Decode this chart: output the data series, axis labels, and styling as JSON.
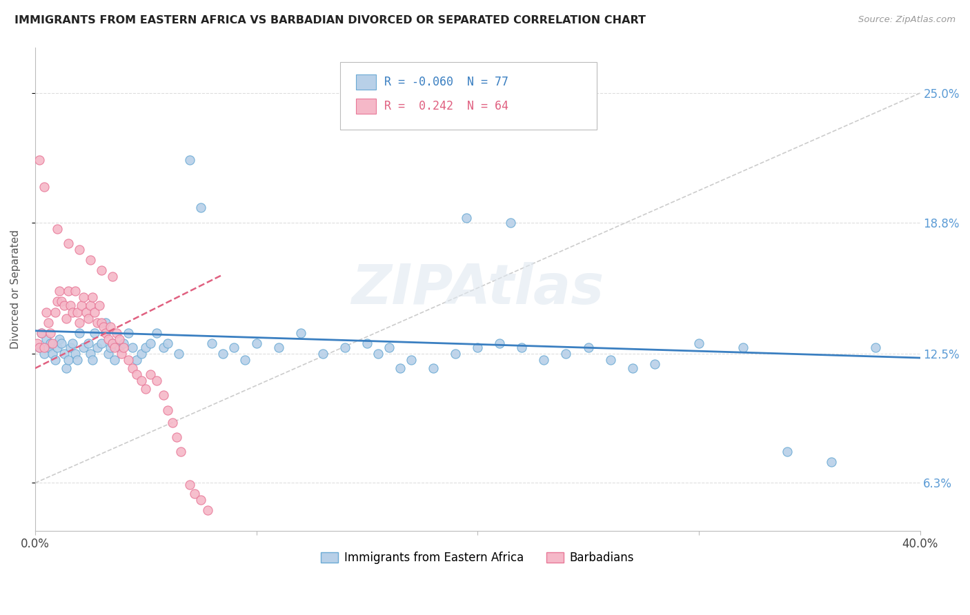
{
  "title": "IMMIGRANTS FROM EASTERN AFRICA VS BARBADIAN DIVORCED OR SEPARATED CORRELATION CHART",
  "source": "Source: ZipAtlas.com",
  "ylabel": "Divorced or Separated",
  "xlim": [
    0.0,
    0.4
  ],
  "ylim": [
    0.04,
    0.272
  ],
  "x_ticks": [
    0.0,
    0.1,
    0.2,
    0.3,
    0.4
  ],
  "x_tick_labels": [
    "0.0%",
    "",
    "",
    "",
    "40.0%"
  ],
  "y_ticks": [
    0.063,
    0.125,
    0.188,
    0.25
  ],
  "y_tick_labels": [
    "6.3%",
    "12.5%",
    "18.8%",
    "25.0%"
  ],
  "blue_R": "-0.060",
  "blue_N": "77",
  "pink_R": "0.242",
  "pink_N": "64",
  "blue_color": "#b8d0e8",
  "pink_color": "#f5b8c8",
  "blue_edge_color": "#6aaad4",
  "pink_edge_color": "#e87898",
  "blue_line_color": "#3a7fc1",
  "pink_line_color": "#e06080",
  "legend_label_blue": "Immigrants from Eastern Africa",
  "legend_label_pink": "Barbadians",
  "watermark": "ZIPAtlas",
  "blue_line_x": [
    0.0,
    0.4
  ],
  "blue_line_y": [
    0.136,
    0.123
  ],
  "pink_line_x": [
    0.0,
    0.085
  ],
  "pink_line_y": [
    0.118,
    0.163
  ],
  "gray_line_x": [
    0.0,
    0.4
  ],
  "gray_line_y": [
    0.063,
    0.25
  ],
  "blue_scatter_x": [
    0.002,
    0.003,
    0.004,
    0.005,
    0.006,
    0.007,
    0.008,
    0.009,
    0.01,
    0.011,
    0.012,
    0.013,
    0.014,
    0.015,
    0.016,
    0.017,
    0.018,
    0.019,
    0.02,
    0.022,
    0.024,
    0.025,
    0.026,
    0.027,
    0.028,
    0.03,
    0.032,
    0.033,
    0.034,
    0.035,
    0.036,
    0.038,
    0.04,
    0.042,
    0.044,
    0.046,
    0.048,
    0.05,
    0.052,
    0.055,
    0.058,
    0.06,
    0.065,
    0.07,
    0.075,
    0.08,
    0.085,
    0.09,
    0.095,
    0.1,
    0.11,
    0.12,
    0.13,
    0.14,
    0.15,
    0.16,
    0.17,
    0.18,
    0.19,
    0.2,
    0.21,
    0.22,
    0.23,
    0.24,
    0.25,
    0.26,
    0.27,
    0.28,
    0.3,
    0.32,
    0.34,
    0.36,
    0.38,
    0.195,
    0.215,
    0.155,
    0.165
  ],
  "blue_scatter_y": [
    0.128,
    0.135,
    0.125,
    0.132,
    0.128,
    0.13,
    0.125,
    0.122,
    0.128,
    0.132,
    0.13,
    0.125,
    0.118,
    0.122,
    0.128,
    0.13,
    0.125,
    0.122,
    0.135,
    0.128,
    0.13,
    0.125,
    0.122,
    0.135,
    0.128,
    0.13,
    0.14,
    0.125,
    0.128,
    0.13,
    0.122,
    0.128,
    0.13,
    0.135,
    0.128,
    0.122,
    0.125,
    0.128,
    0.13,
    0.135,
    0.128,
    0.13,
    0.125,
    0.218,
    0.195,
    0.13,
    0.125,
    0.128,
    0.122,
    0.13,
    0.128,
    0.135,
    0.125,
    0.128,
    0.13,
    0.128,
    0.122,
    0.118,
    0.125,
    0.128,
    0.13,
    0.128,
    0.122,
    0.125,
    0.128,
    0.122,
    0.118,
    0.12,
    0.13,
    0.128,
    0.078,
    0.073,
    0.128,
    0.19,
    0.188,
    0.125,
    0.118
  ],
  "pink_scatter_x": [
    0.001,
    0.002,
    0.003,
    0.004,
    0.005,
    0.006,
    0.007,
    0.008,
    0.009,
    0.01,
    0.011,
    0.012,
    0.013,
    0.014,
    0.015,
    0.016,
    0.017,
    0.018,
    0.019,
    0.02,
    0.021,
    0.022,
    0.023,
    0.024,
    0.025,
    0.026,
    0.027,
    0.028,
    0.029,
    0.03,
    0.031,
    0.032,
    0.033,
    0.034,
    0.035,
    0.036,
    0.037,
    0.038,
    0.039,
    0.04,
    0.042,
    0.044,
    0.046,
    0.048,
    0.05,
    0.052,
    0.055,
    0.058,
    0.06,
    0.062,
    0.064,
    0.066,
    0.07,
    0.072,
    0.075,
    0.078,
    0.002,
    0.004,
    0.01,
    0.015,
    0.02,
    0.025,
    0.03,
    0.035
  ],
  "pink_scatter_y": [
    0.13,
    0.128,
    0.135,
    0.128,
    0.145,
    0.14,
    0.135,
    0.13,
    0.145,
    0.15,
    0.155,
    0.15,
    0.148,
    0.142,
    0.155,
    0.148,
    0.145,
    0.155,
    0.145,
    0.14,
    0.148,
    0.152,
    0.145,
    0.142,
    0.148,
    0.152,
    0.145,
    0.14,
    0.148,
    0.14,
    0.138,
    0.135,
    0.132,
    0.138,
    0.13,
    0.128,
    0.135,
    0.132,
    0.125,
    0.128,
    0.122,
    0.118,
    0.115,
    0.112,
    0.108,
    0.115,
    0.112,
    0.105,
    0.098,
    0.092,
    0.085,
    0.078,
    0.062,
    0.058,
    0.055,
    0.05,
    0.218,
    0.205,
    0.185,
    0.178,
    0.175,
    0.17,
    0.165,
    0.162
  ]
}
